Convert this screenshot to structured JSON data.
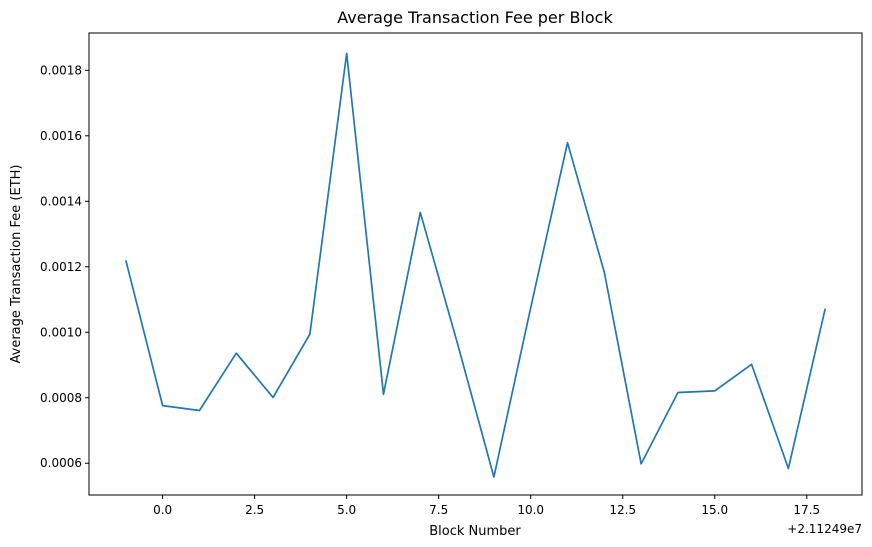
{
  "chart_data": {
    "type": "line",
    "title": "Average Transaction Fee per Block",
    "xlabel": "Block Number",
    "ylabel": "Average Transaction Fee (ETH)",
    "x_offset_label": "+2.11249e7",
    "x_offset": 21124900,
    "xlim": [
      -2.0,
      19.0
    ],
    "ylim": [
      0.000503,
      0.001914
    ],
    "x_ticks": [
      0.0,
      2.5,
      5.0,
      7.5,
      10.0,
      12.5,
      15.0,
      17.5
    ],
    "x_tick_labels": [
      "0.0",
      "2.5",
      "5.0",
      "7.5",
      "10.0",
      "12.5",
      "15.0",
      "17.5"
    ],
    "y_ticks": [
      0.0006,
      0.0008,
      0.001,
      0.0012,
      0.0014,
      0.0016,
      0.0018
    ],
    "y_tick_labels": [
      "0.0006",
      "0.0008",
      "0.0010",
      "0.0012",
      "0.0014",
      "0.0016",
      "0.0018"
    ],
    "grid": false,
    "series": [
      {
        "color": "#1f77b4",
        "x": [
          -1,
          0,
          1,
          2,
          3,
          4,
          5,
          6,
          7,
          8,
          9,
          10,
          11,
          12,
          13,
          14,
          15,
          16,
          17,
          18
        ],
        "y": [
          0.00122,
          0.000776,
          0.000761,
          0.000936,
          0.000801,
          0.000994,
          0.001852,
          0.000811,
          0.001366,
          0.00097,
          0.000558,
          0.001075,
          0.001579,
          0.001183,
          0.000598,
          0.000816,
          0.000821,
          0.000902,
          0.000584,
          0.001072
        ]
      }
    ]
  }
}
